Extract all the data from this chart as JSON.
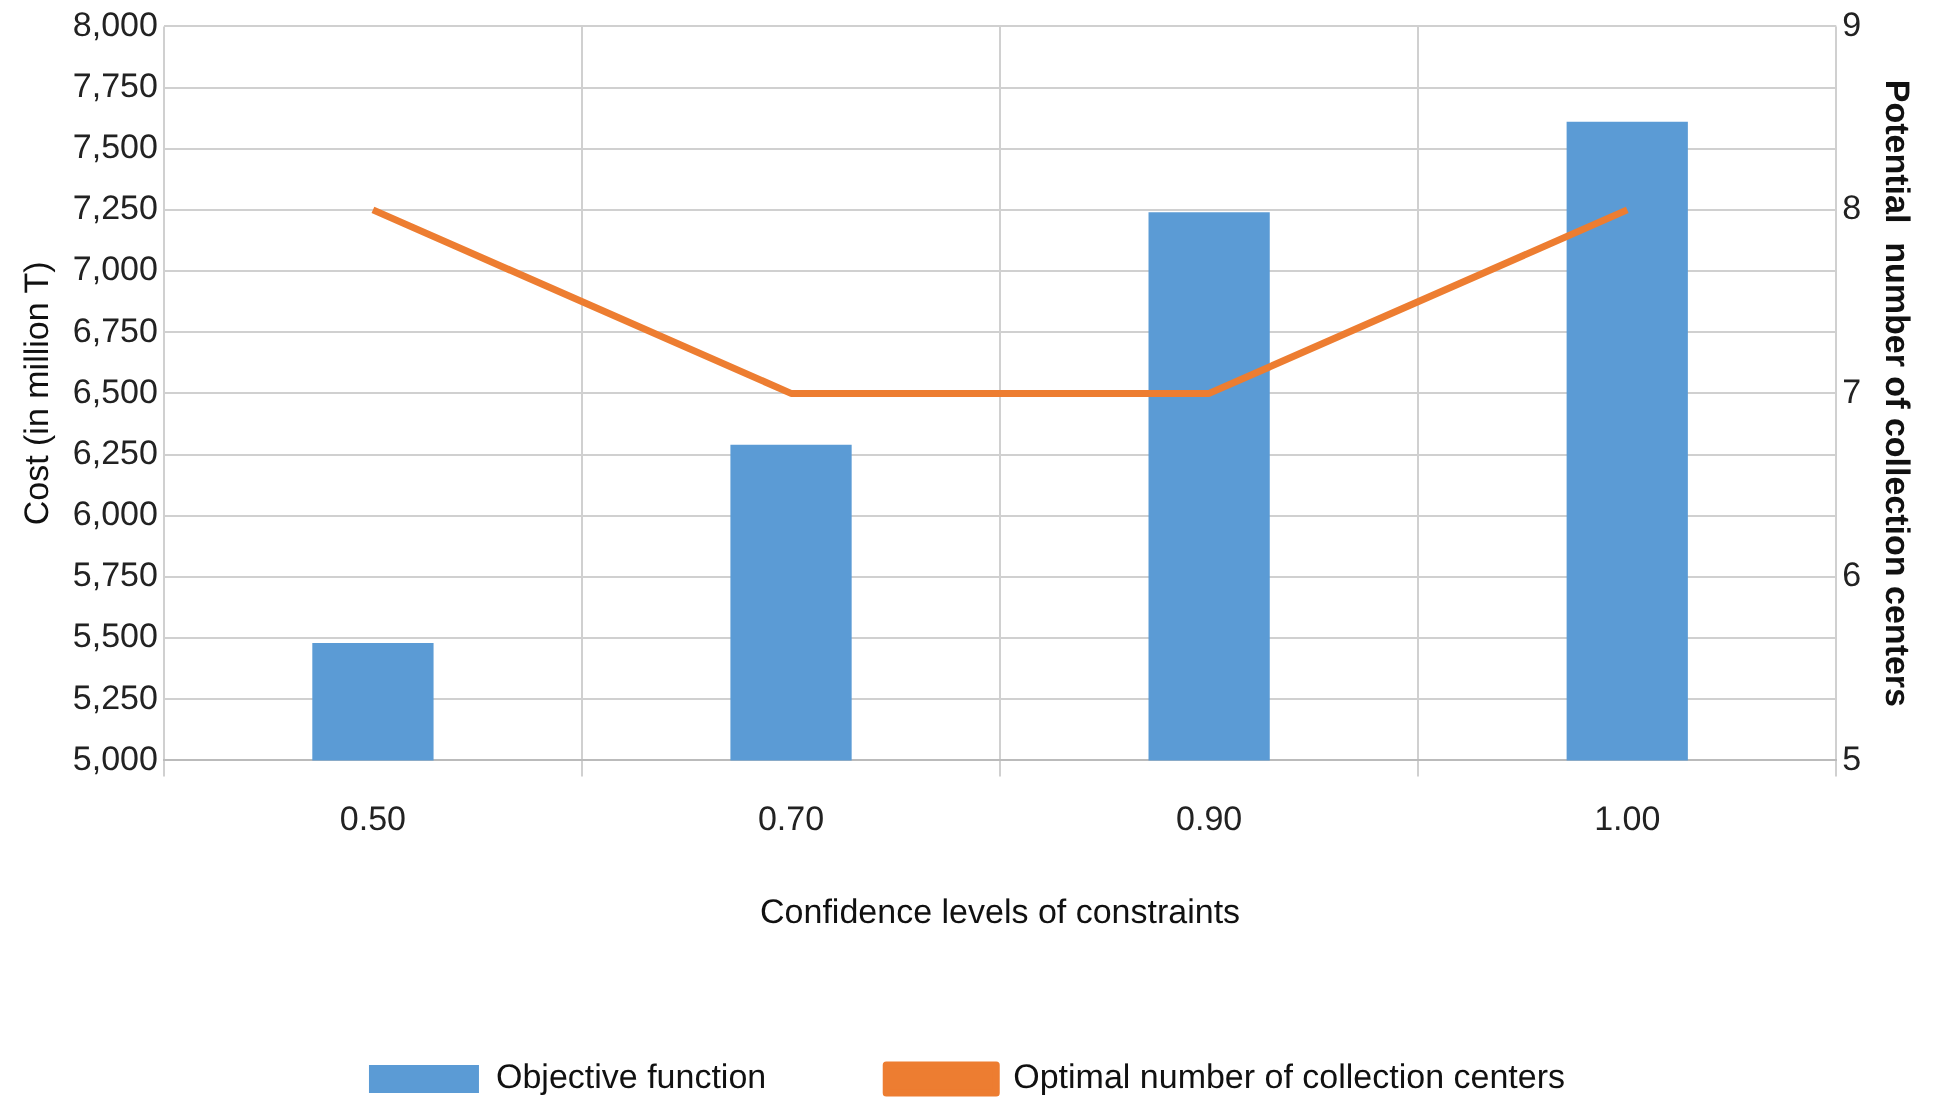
{
  "chart_data": {
    "type": "bar",
    "xlabel": "Confidence levels of constraints",
    "ylabel": "Cost (in million T)",
    "y2label": "Potential  number of collection centers",
    "categories": [
      "0.50",
      "0.70",
      "0.90",
      "1.00"
    ],
    "series": [
      {
        "name": "Objective function",
        "color": "#5b9bd5",
        "values": [
          5480,
          6290,
          7240,
          7610
        ]
      },
      {
        "name": "Optimal number of collection centers",
        "type": "line",
        "axis": "y2",
        "color": "#ed7d31",
        "values": [
          8,
          7,
          7,
          8
        ]
      }
    ],
    "ylim": [
      5000,
      8000
    ],
    "yticks": [
      {
        "value": 5000,
        "label": "5,000"
      },
      {
        "value": 5250,
        "label": "5,250"
      },
      {
        "value": 5500,
        "label": "5,500"
      },
      {
        "value": 5750,
        "label": "5,750"
      },
      {
        "value": 6000,
        "label": "6,000"
      },
      {
        "value": 6250,
        "label": "6,250"
      },
      {
        "value": 6500,
        "label": "6,500"
      },
      {
        "value": 6750,
        "label": "6,750"
      },
      {
        "value": 7000,
        "label": "7,000"
      },
      {
        "value": 7250,
        "label": "7,250"
      },
      {
        "value": 7500,
        "label": "7,500"
      },
      {
        "value": 7750,
        "label": "7,750"
      },
      {
        "value": 8000,
        "label": "8,000"
      }
    ],
    "y2lim": [
      5,
      9
    ],
    "y2ticks": [
      5,
      6,
      7,
      8,
      9
    ],
    "grid": true,
    "legend": "bottom",
    "marker": "none"
  }
}
